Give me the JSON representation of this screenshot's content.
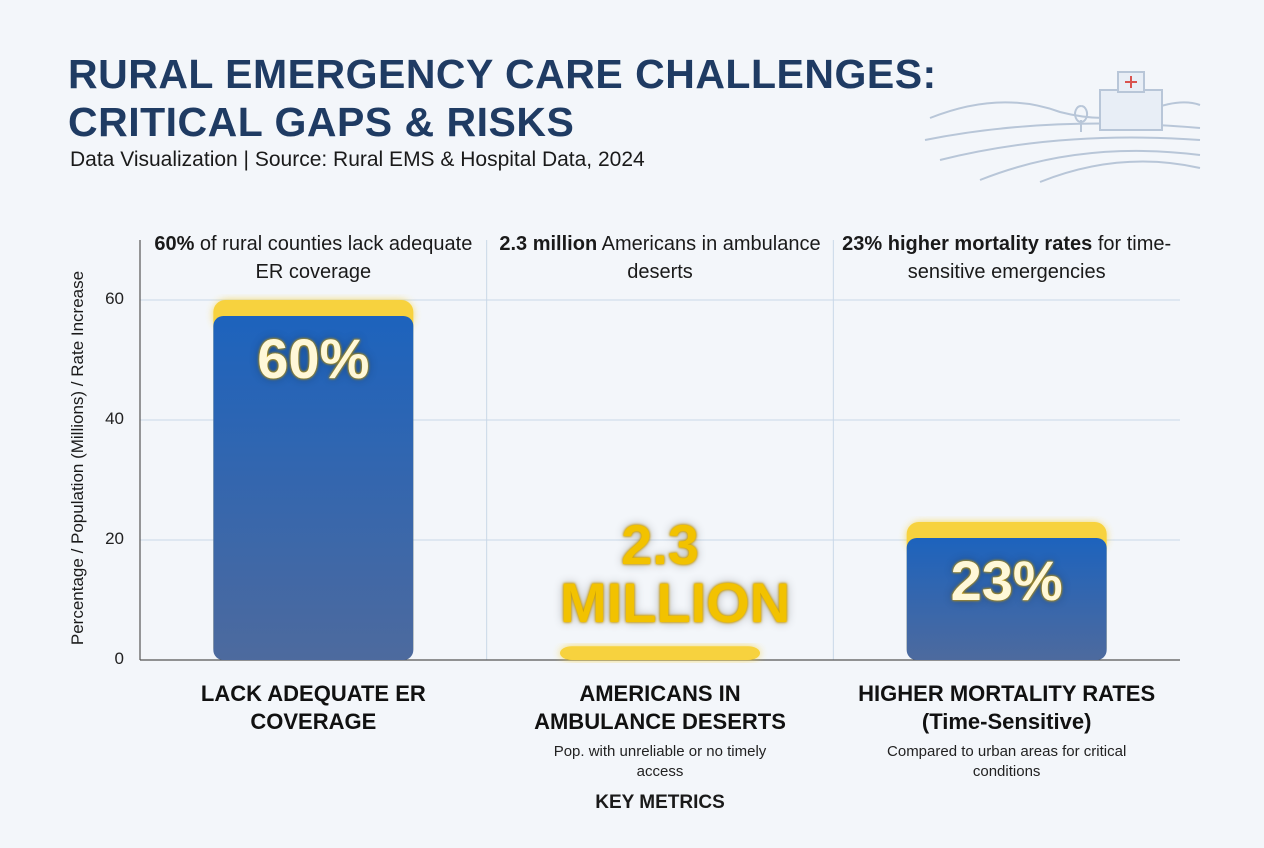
{
  "chart_data": {
    "type": "bar",
    "title": "RURAL EMERGENCY CARE CHALLENGES: CRITICAL GAPS & RISKS",
    "subtitle": "Data Visualization | Source: Rural EMS & Hospital Data, 2024",
    "ylabel": "Percentage / Population (Millions) / Rate Increase",
    "xlabel": "KEY METRICS",
    "categories": [
      "LACK ADEQUATE ER COVERAGE",
      "AMERICANS IN AMBULANCE DESERTS",
      "HIGHER MORTALITY RATES (Time-Sensitive)"
    ],
    "sublabels": [
      null,
      "Pop. with unreliable or no timely access",
      "Compared to urban areas for critical conditions"
    ],
    "annotations": [
      {
        "bold": "60%",
        "text": "of rural counties lack adequate ER coverage"
      },
      {
        "bold": "2.3 million",
        "text": "Americans in ambulance deserts"
      },
      {
        "bold": "23% higher mortality rates",
        "text": "for time-sensitive emergencies"
      }
    ],
    "values": [
      60,
      2.3,
      23
    ],
    "value_labels": [
      "60%",
      "2.3 MILLION",
      "23%"
    ],
    "color": "#f7d23e",
    "ylim": [
      0,
      70
    ],
    "yticks": [
      0,
      20,
      40,
      60
    ],
    "grid": true
  }
}
